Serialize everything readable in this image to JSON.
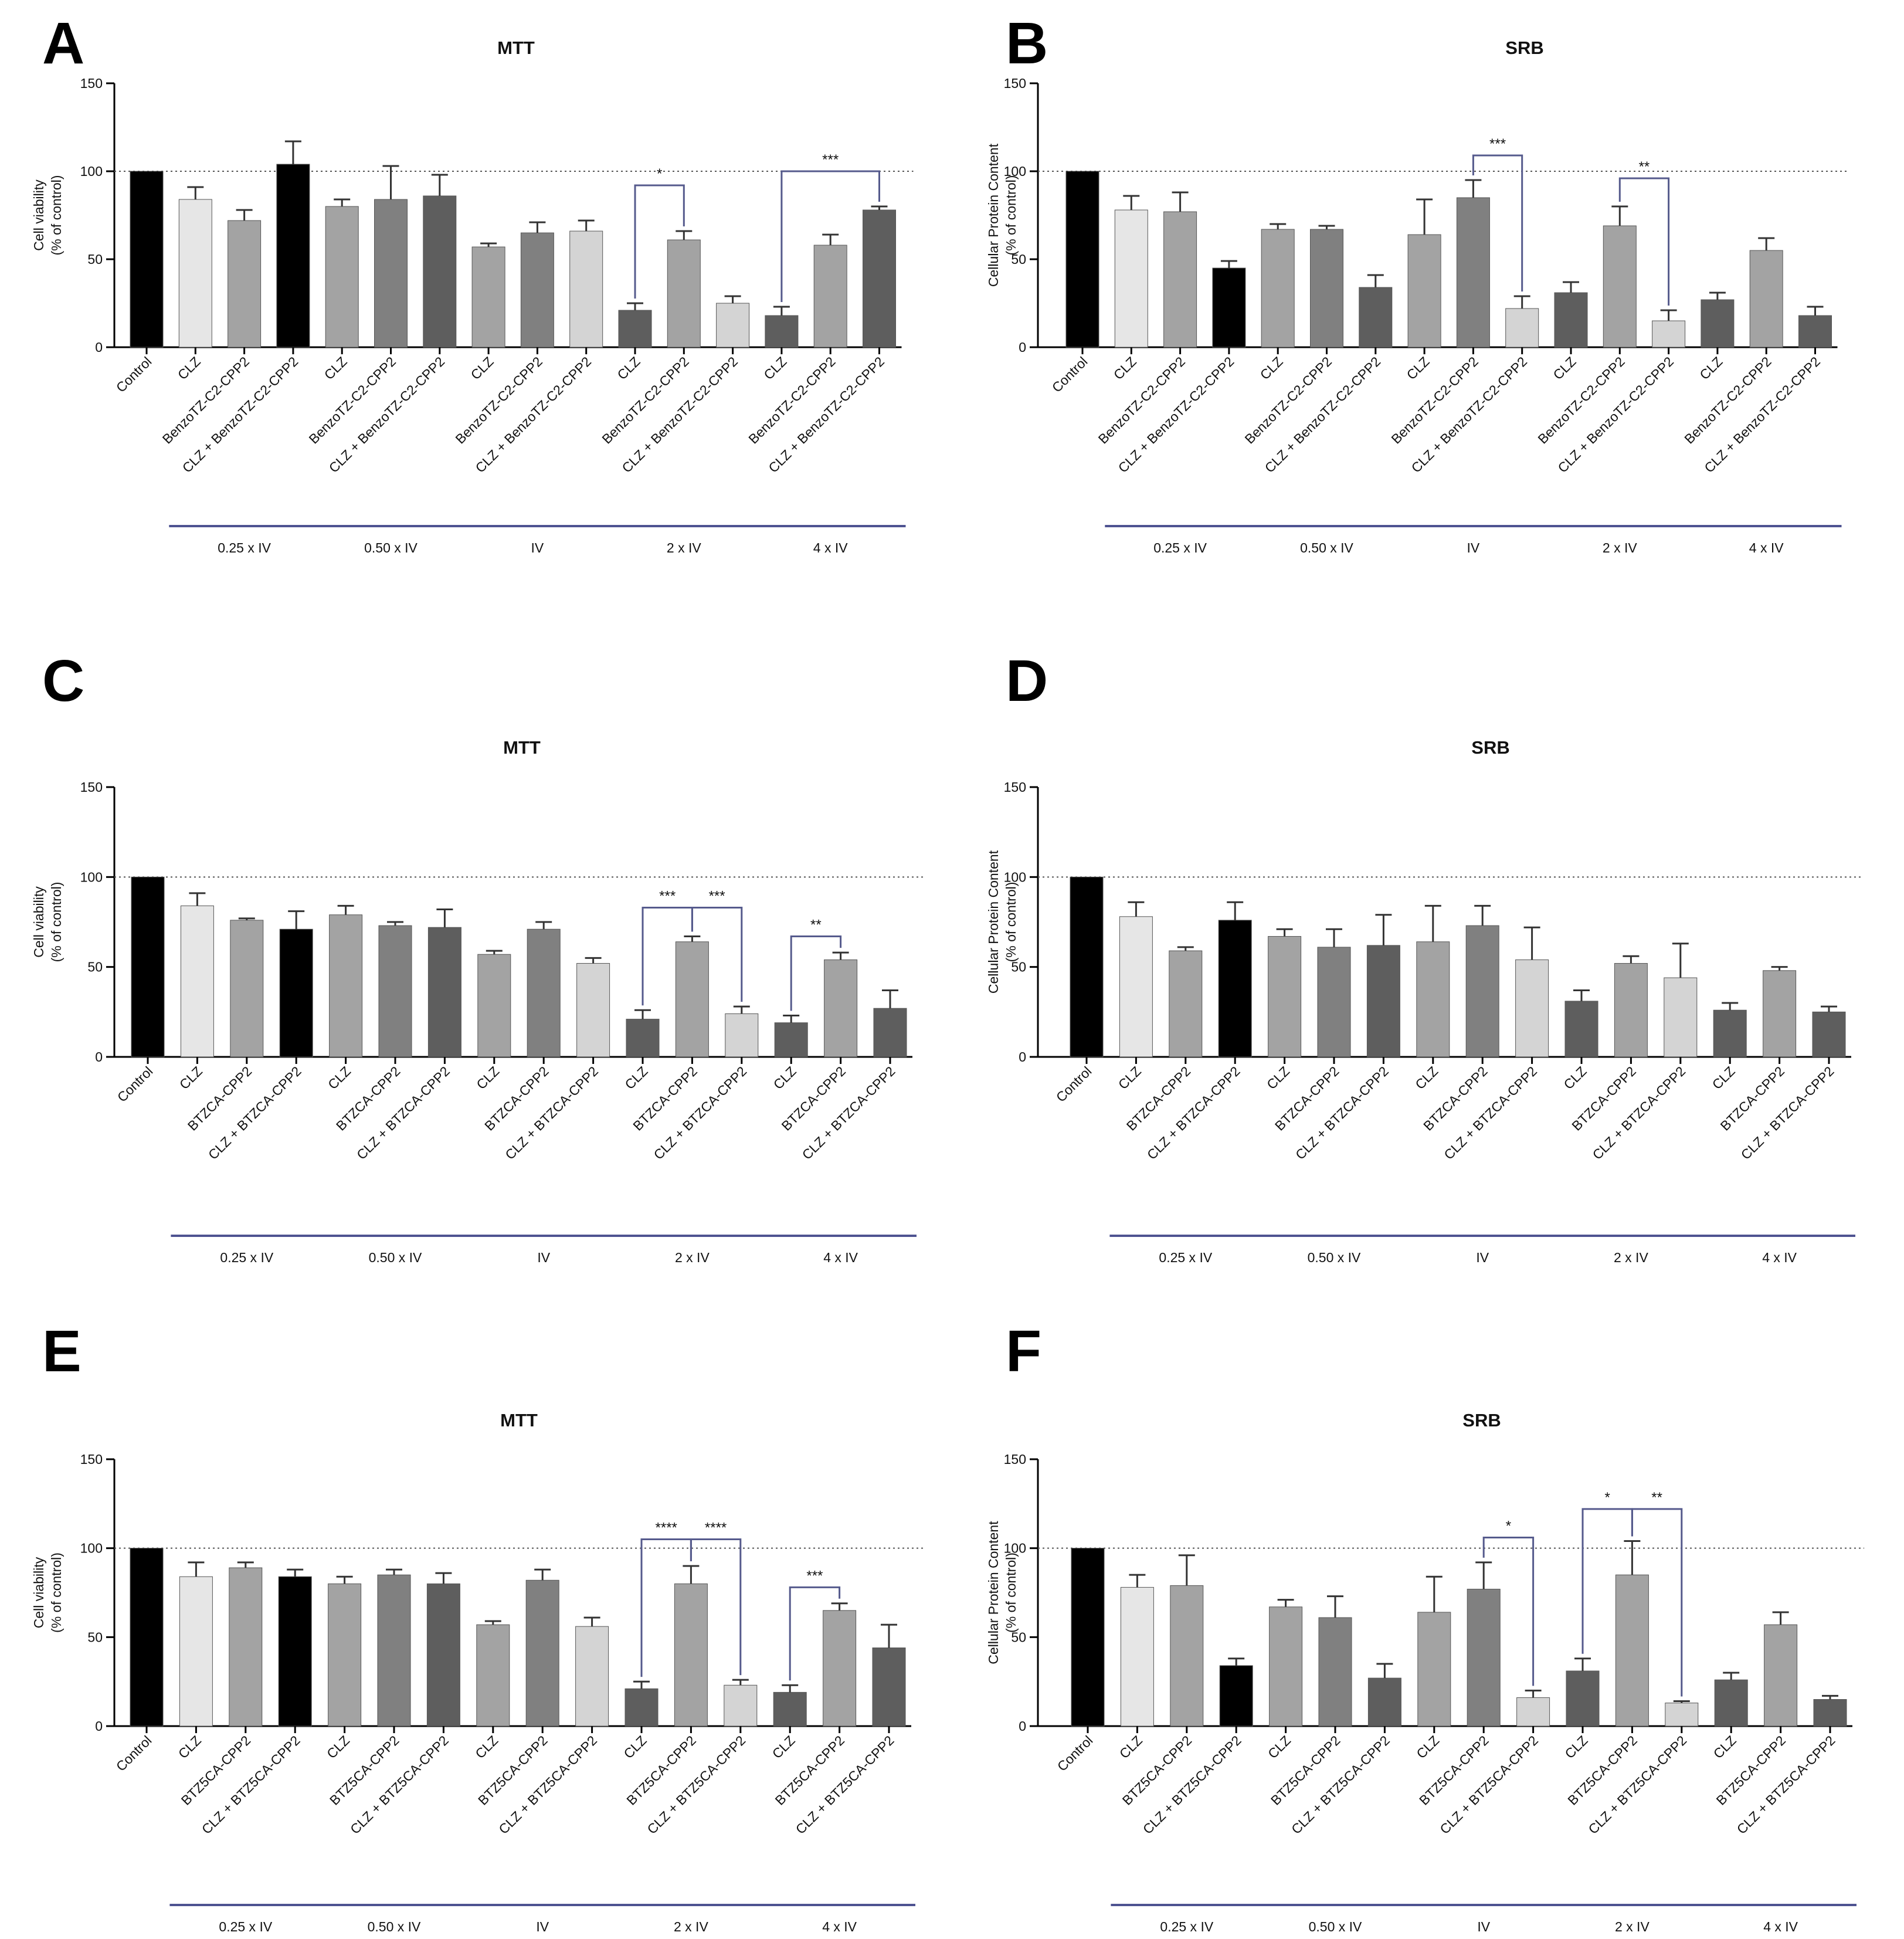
{
  "colors": {
    "black": "#000000",
    "light": "#e6e6e6",
    "midlight": "#a3a3a3",
    "mid": "#808080",
    "dark": "#5e5e5e",
    "lighter": "#d4d4d4",
    "bracket": "#555a8c",
    "group_line": "#4e5391"
  },
  "chart_data": [
    {
      "panel": "A",
      "type": "bar",
      "title": "MTT",
      "ylabel": [
        "Cell viability",
        "(% of control)"
      ],
      "ylim": [
        0,
        150
      ],
      "yticks": [
        0,
        50,
        100,
        150
      ],
      "reference_line": 100,
      "categories": [
        "Control",
        "CLZ",
        "BenzoTZ-C2-CPP2",
        "CLZ + BenzoTZ-C2-CPP2",
        "CLZ",
        "BenzoTZ-C2-CPP2",
        "CLZ + BenzoTZ-C2-CPP2",
        "CLZ",
        "BenzoTZ-C2-CPP2",
        "CLZ + BenzoTZ-C2-CPP2",
        "CLZ",
        "BenzoTZ-C2-CPP2",
        "CLZ + BenzoTZ-C2-CPP2",
        "CLZ",
        "BenzoTZ-C2-CPP2",
        "CLZ + BenzoTZ-C2-CPP2"
      ],
      "values": [
        100,
        84,
        72,
        104,
        80,
        84,
        86,
        57,
        65,
        66,
        21,
        61,
        25,
        18,
        58,
        78
      ],
      "errors": [
        0,
        7,
        6,
        13,
        4,
        19,
        12,
        2,
        6,
        6,
        4,
        5,
        4,
        5,
        6,
        2
      ],
      "colors": [
        "black",
        "light",
        "midlight",
        "black",
        "midlight",
        "mid",
        "dark",
        "midlight",
        "mid",
        "lighter",
        "dark",
        "midlight",
        "lighter",
        "dark",
        "midlight",
        "dark"
      ],
      "groups": [
        {
          "label": "0.25 x IV",
          "start": 1,
          "end": 3
        },
        {
          "label": "0.50 x IV",
          "start": 4,
          "end": 6
        },
        {
          "label": "IV",
          "start": 7,
          "end": 9
        },
        {
          "label": "2 x IV",
          "start": 10,
          "end": 12
        },
        {
          "label": "4 x IV",
          "start": 13,
          "end": 15
        }
      ],
      "brackets": [
        {
          "from": 10,
          "to": 11,
          "label": "*",
          "y": 92
        },
        {
          "from": 13,
          "to": 15,
          "label": "***",
          "y": 100
        }
      ]
    },
    {
      "panel": "B",
      "type": "bar",
      "title": "SRB",
      "ylabel": [
        "Cellular Protein Content",
        "(% of control)"
      ],
      "ylim": [
        0,
        150
      ],
      "yticks": [
        0,
        50,
        100,
        150
      ],
      "reference_line": 100,
      "categories": [
        "Control",
        "CLZ",
        "BenzoTZ-C2-CPP2",
        "CLZ + BenzoTZ-C2-CPP2",
        "CLZ",
        "BenzoTZ-C2-CPP2",
        "CLZ + BenzoTZ-C2-CPP2",
        "CLZ",
        "BenzoTZ-C2-CPP2",
        "CLZ + BenzoTZ-C2-CPP2",
        "CLZ",
        "BenzoTZ-C2-CPP2",
        "CLZ + BenzoTZ-C2-CPP2",
        "CLZ",
        "BenzoTZ-C2-CPP2",
        "CLZ + BenzoTZ-C2-CPP2"
      ],
      "values": [
        100,
        78,
        77,
        45,
        67,
        67,
        34,
        64,
        85,
        22,
        31,
        69,
        15,
        27,
        55,
        18
      ],
      "errors": [
        0,
        8,
        11,
        4,
        3,
        2,
        7,
        20,
        10,
        7,
        6,
        11,
        6,
        4,
        7,
        5
      ],
      "colors": [
        "black",
        "light",
        "midlight",
        "black",
        "midlight",
        "mid",
        "dark",
        "midlight",
        "mid",
        "lighter",
        "dark",
        "midlight",
        "lighter",
        "dark",
        "midlight",
        "dark"
      ],
      "groups": [
        {
          "label": "0.25 x IV",
          "start": 1,
          "end": 3
        },
        {
          "label": "0.50 x IV",
          "start": 4,
          "end": 6
        },
        {
          "label": "IV",
          "start": 7,
          "end": 9
        },
        {
          "label": "2 x IV",
          "start": 10,
          "end": 12
        },
        {
          "label": "4 x IV",
          "start": 13,
          "end": 15
        }
      ],
      "brackets": [
        {
          "from": 8,
          "to": 9,
          "label": "***",
          "y": 109
        },
        {
          "from": 11,
          "to": 12,
          "label": "**",
          "y": 96
        }
      ]
    },
    {
      "panel": "C",
      "type": "bar",
      "title": "MTT",
      "ylabel": [
        "Cell viability",
        "(% of control)"
      ],
      "ylim": [
        0,
        150
      ],
      "yticks": [
        0,
        50,
        100,
        150
      ],
      "reference_line": 100,
      "categories": [
        "Control",
        "CLZ",
        "BTZCA-CPP2",
        "CLZ + BTZCA-CPP2",
        "CLZ",
        "BTZCA-CPP2",
        "CLZ + BTZCA-CPP2",
        "CLZ",
        "BTZCA-CPP2",
        "CLZ + BTZCA-CPP2",
        "CLZ",
        "BTZCA-CPP2",
        "CLZ + BTZCA-CPP2",
        "CLZ",
        "BTZCA-CPP2",
        "CLZ + BTZCA-CPP2"
      ],
      "values": [
        100,
        84,
        76,
        71,
        79,
        73,
        72,
        57,
        71,
        52,
        21,
        64,
        24,
        19,
        54,
        27
      ],
      "errors": [
        0,
        7,
        1,
        10,
        5,
        2,
        10,
        2,
        4,
        3,
        5,
        3,
        4,
        4,
        4,
        10
      ],
      "colors": [
        "black",
        "light",
        "midlight",
        "black",
        "midlight",
        "mid",
        "dark",
        "midlight",
        "mid",
        "lighter",
        "dark",
        "midlight",
        "lighter",
        "dark",
        "midlight",
        "dark"
      ],
      "groups": [
        {
          "label": "0.25 x IV",
          "start": 1,
          "end": 3
        },
        {
          "label": "0.50 x IV",
          "start": 4,
          "end": 6
        },
        {
          "label": "IV",
          "start": 7,
          "end": 9
        },
        {
          "label": "2 x IV",
          "start": 10,
          "end": 12
        },
        {
          "label": "4 x IV",
          "start": 13,
          "end": 15
        }
      ],
      "brackets": [
        {
          "from": 10,
          "to": 11,
          "label": "***",
          "y": 83
        },
        {
          "from": 11,
          "to": 12,
          "label": "***",
          "y": 83
        },
        {
          "from": 13,
          "to": 14,
          "label": "**",
          "y": 67
        }
      ]
    },
    {
      "panel": "D",
      "type": "bar",
      "title": "SRB",
      "ylabel": [
        "Cellular Protein Content",
        "(% of control)"
      ],
      "ylim": [
        0,
        150
      ],
      "yticks": [
        0,
        50,
        100,
        150
      ],
      "reference_line": 100,
      "categories": [
        "Control",
        "CLZ",
        "BTZCA-CPP2",
        "CLZ + BTZCA-CPP2",
        "CLZ",
        "BTZCA-CPP2",
        "CLZ + BTZCA-CPP2",
        "CLZ",
        "BTZCA-CPP2",
        "CLZ + BTZCA-CPP2",
        "CLZ",
        "BTZCA-CPP2",
        "CLZ + BTZCA-CPP2",
        "CLZ",
        "BTZCA-CPP2",
        "CLZ + BTZCA-CPP2"
      ],
      "values": [
        100,
        78,
        59,
        76,
        67,
        61,
        62,
        64,
        73,
        54,
        31,
        52,
        44,
        26,
        48,
        25
      ],
      "errors": [
        0,
        8,
        2,
        10,
        4,
        10,
        17,
        20,
        11,
        18,
        6,
        4,
        19,
        4,
        2,
        3
      ],
      "colors": [
        "black",
        "light",
        "midlight",
        "black",
        "midlight",
        "mid",
        "dark",
        "midlight",
        "mid",
        "lighter",
        "dark",
        "midlight",
        "lighter",
        "dark",
        "midlight",
        "dark"
      ],
      "groups": [
        {
          "label": "0.25 x IV",
          "start": 1,
          "end": 3
        },
        {
          "label": "0.50 x IV",
          "start": 4,
          "end": 6
        },
        {
          "label": "IV",
          "start": 7,
          "end": 9
        },
        {
          "label": "2 x IV",
          "start": 10,
          "end": 12
        },
        {
          "label": "4 x IV",
          "start": 13,
          "end": 15
        }
      ],
      "brackets": []
    },
    {
      "panel": "E",
      "type": "bar",
      "title": "MTT",
      "ylabel": [
        "Cell viability",
        "(% of control)"
      ],
      "ylim": [
        0,
        150
      ],
      "yticks": [
        0,
        50,
        100,
        150
      ],
      "reference_line": 100,
      "categories": [
        "Control",
        "CLZ",
        "BTZ5CA-CPP2",
        "CLZ + BTZ5CA-CPP2",
        "CLZ",
        "BTZ5CA-CPP2",
        "CLZ + BTZ5CA-CPP2",
        "CLZ",
        "BTZ5CA-CPP2",
        "CLZ + BTZ5CA-CPP2",
        "CLZ",
        "BTZ5CA-CPP2",
        "CLZ + BTZ5CA-CPP2",
        "CLZ",
        "BTZ5CA-CPP2",
        "CLZ + BTZ5CA-CPP2"
      ],
      "values": [
        100,
        84,
        89,
        84,
        80,
        85,
        80,
        57,
        82,
        56,
        21,
        80,
        23,
        19,
        65,
        44
      ],
      "errors": [
        0,
        8,
        3,
        4,
        4,
        3,
        6,
        2,
        6,
        5,
        4,
        10,
        3,
        4,
        4,
        13
      ],
      "colors": [
        "black",
        "light",
        "midlight",
        "black",
        "midlight",
        "mid",
        "dark",
        "midlight",
        "mid",
        "lighter",
        "dark",
        "midlight",
        "lighter",
        "dark",
        "midlight",
        "dark"
      ],
      "groups": [
        {
          "label": "0.25 x IV",
          "start": 1,
          "end": 3
        },
        {
          "label": "0.50 x IV",
          "start": 4,
          "end": 6
        },
        {
          "label": "IV",
          "start": 7,
          "end": 9
        },
        {
          "label": "2 x IV",
          "start": 10,
          "end": 12
        },
        {
          "label": "4 x IV",
          "start": 13,
          "end": 15
        }
      ],
      "brackets": [
        {
          "from": 10,
          "to": 11,
          "label": "****",
          "y": 105
        },
        {
          "from": 11,
          "to": 12,
          "label": "****",
          "y": 105
        },
        {
          "from": 13,
          "to": 14,
          "label": "***",
          "y": 78
        }
      ]
    },
    {
      "panel": "F",
      "type": "bar",
      "title": "SRB",
      "ylabel": [
        "Cellular Protein Content",
        "(% of control)"
      ],
      "ylim": [
        0,
        150
      ],
      "yticks": [
        0,
        50,
        100,
        150
      ],
      "reference_line": 100,
      "categories": [
        "Control",
        "CLZ",
        "BTZ5CA-CPP2",
        "CLZ + BTZ5CA-CPP2",
        "CLZ",
        "BTZ5CA-CPP2",
        "CLZ + BTZ5CA-CPP2",
        "CLZ",
        "BTZ5CA-CPP2",
        "CLZ + BTZ5CA-CPP2",
        "CLZ",
        "BTZ5CA-CPP2",
        "CLZ + BTZ5CA-CPP2",
        "CLZ",
        "BTZ5CA-CPP2",
        "CLZ + BTZ5CA-CPP2"
      ],
      "values": [
        100,
        78,
        79,
        34,
        67,
        61,
        27,
        64,
        77,
        16,
        31,
        85,
        13,
        26,
        57,
        15
      ],
      "errors": [
        0,
        7,
        17,
        4,
        4,
        12,
        8,
        20,
        15,
        4,
        7,
        19,
        1,
        4,
        7,
        2
      ],
      "colors": [
        "black",
        "light",
        "midlight",
        "black",
        "midlight",
        "mid",
        "dark",
        "midlight",
        "mid",
        "lighter",
        "dark",
        "midlight",
        "lighter",
        "dark",
        "midlight",
        "dark"
      ],
      "groups": [
        {
          "label": "0.25 x IV",
          "start": 1,
          "end": 3
        },
        {
          "label": "0.50 x IV",
          "start": 4,
          "end": 6
        },
        {
          "label": "IV",
          "start": 7,
          "end": 9
        },
        {
          "label": "2 x IV",
          "start": 10,
          "end": 12
        },
        {
          "label": "4 x IV",
          "start": 13,
          "end": 15
        }
      ],
      "brackets": [
        {
          "from": 8,
          "to": 9,
          "label": "*",
          "y": 106
        },
        {
          "from": 10,
          "to": 11,
          "label": "*",
          "y": 122
        },
        {
          "from": 11,
          "to": 12,
          "label": "**",
          "y": 122
        }
      ]
    }
  ]
}
